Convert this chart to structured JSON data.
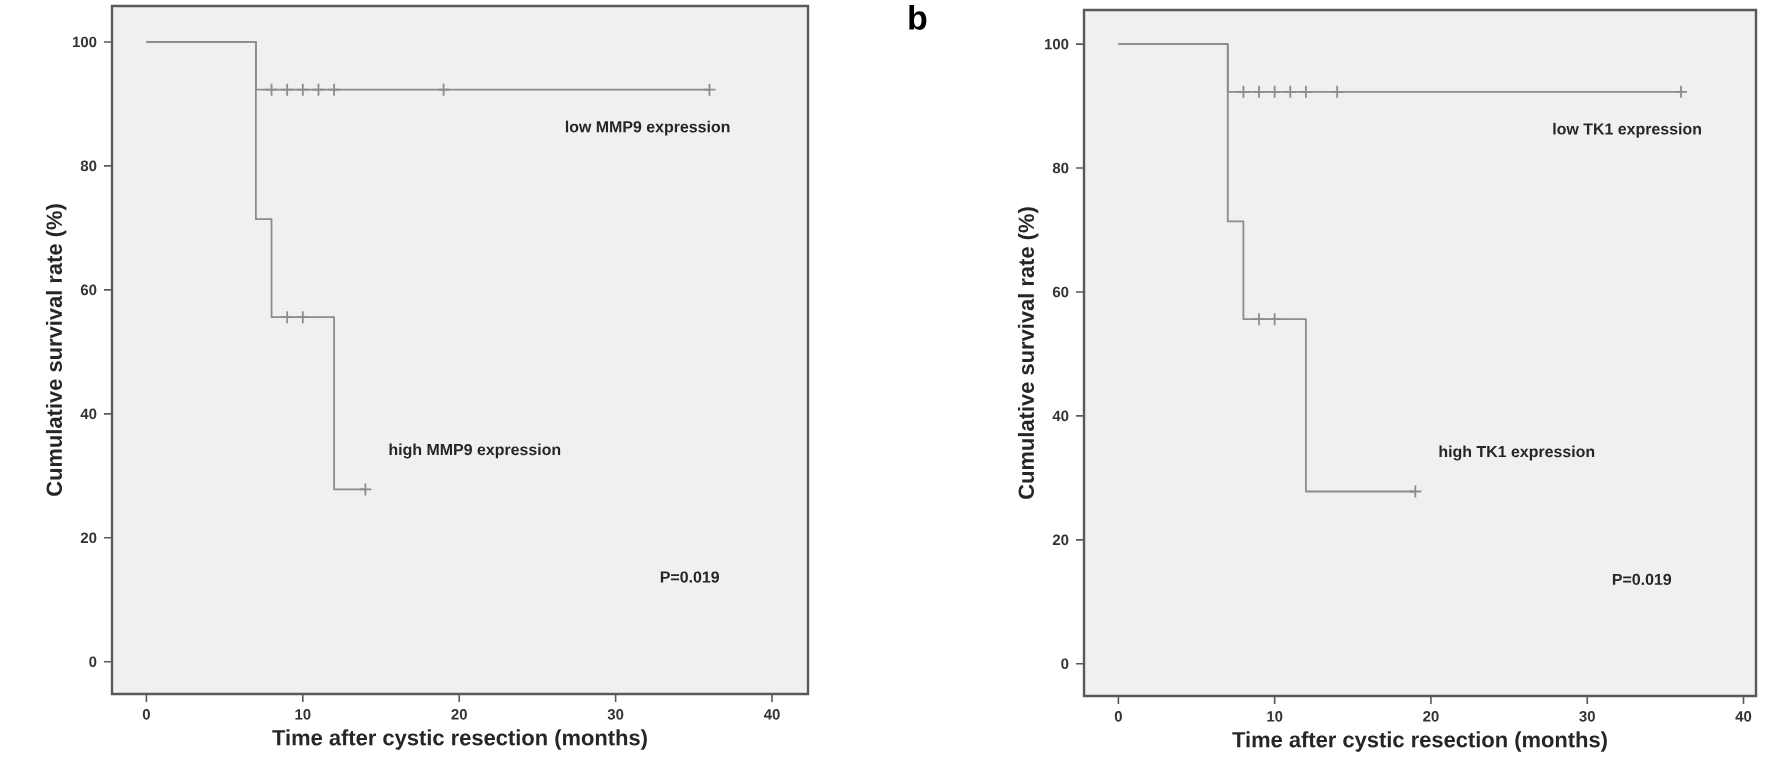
{
  "chart_data": [
    {
      "type": "step",
      "xlabel": "Time after cystic resection (months)",
      "ylabel": "Cumulative survival rate (%)",
      "xlim": [
        -2.2,
        42.3
      ],
      "ylim": [
        -5.2,
        105.8
      ],
      "xticks": [
        0,
        10,
        20,
        30,
        40
      ],
      "yticks": [
        0,
        20,
        40,
        60,
        80,
        100
      ],
      "grid": false,
      "series": [
        {
          "name": "low MMP9 expression",
          "color": "#8c8c8c",
          "x": [
            0,
            7,
            36
          ],
          "values": [
            100,
            92.3,
            92.3
          ]
        },
        {
          "name": "high MMP9 expression",
          "color": "#8c8c8c",
          "x": [
            0,
            7,
            8,
            12,
            14
          ],
          "values": [
            100,
            71.4,
            55.6,
            27.8,
            27.8
          ]
        },
        {
          "type": "scatter",
          "marker": "cross",
          "color": "#8c8c8c",
          "x": [
            8,
            9,
            10,
            11,
            12,
            19,
            36
          ],
          "values": [
            92.3,
            92.3,
            92.3,
            92.3,
            92.3,
            92.3,
            92.3
          ]
        },
        {
          "type": "scatter",
          "marker": "cross",
          "color": "#8c8c8c",
          "x": [
            9,
            10,
            14
          ],
          "values": [
            55.6,
            55.6,
            27.8
          ]
        }
      ],
      "annotations": [
        "P=0.019"
      ]
    },
    {
      "type": "step",
      "title": "b",
      "xlabel": "Time after cystic resection (months)",
      "ylabel": "Cumulative survival rate (%)",
      "xlim": [
        -2.2,
        40.8
      ],
      "ylim": [
        -5.2,
        105.5
      ],
      "xticks": [
        0,
        10,
        20,
        30,
        40
      ],
      "yticks": [
        0,
        20,
        40,
        60,
        80,
        100
      ],
      "grid": false,
      "series": [
        {
          "name": "low TK1 expression",
          "color": "#8c8c8c",
          "x": [
            0,
            7,
            36
          ],
          "values": [
            100,
            92.3,
            92.3
          ]
        },
        {
          "name": "high TK1 expression",
          "color": "#8c8c8c",
          "x": [
            0,
            7,
            8,
            12,
            19
          ],
          "values": [
            100,
            71.4,
            55.6,
            27.8,
            27.8
          ]
        },
        {
          "type": "scatter",
          "marker": "cross",
          "color": "#8c8c8c",
          "x": [
            8,
            9,
            10,
            11,
            12,
            14,
            36
          ],
          "values": [
            92.3,
            92.3,
            92.3,
            92.3,
            92.3,
            92.3,
            92.3
          ]
        },
        {
          "type": "scatter",
          "marker": "cross",
          "color": "#8c8c8c",
          "x": [
            9,
            10,
            19
          ],
          "values": [
            55.6,
            55.6,
            27.8
          ]
        }
      ],
      "annotations": [
        "P=0.019"
      ]
    }
  ]
}
